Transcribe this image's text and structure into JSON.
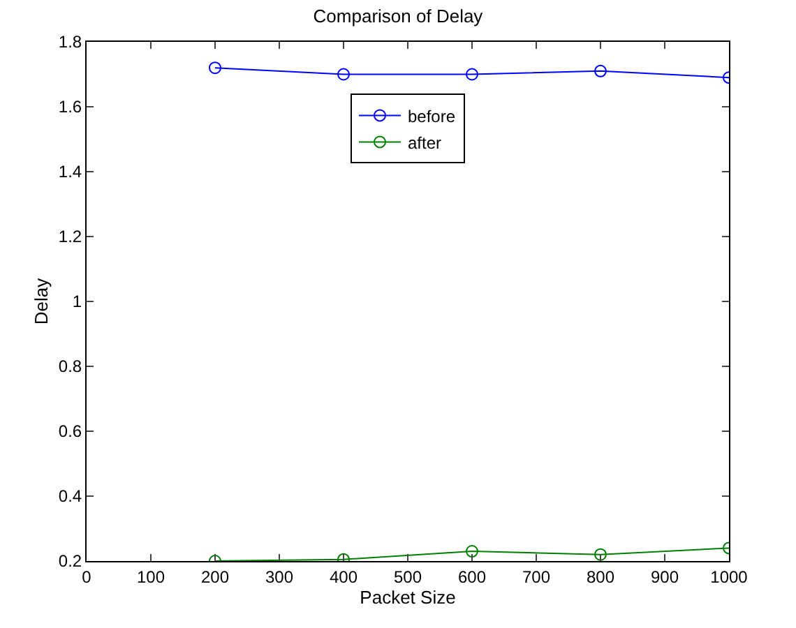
{
  "chart_data": {
    "type": "line",
    "title": "Comparison of Delay",
    "xlabel": "Packet Size",
    "ylabel": "Delay",
    "x": [
      200,
      400,
      600,
      800,
      1000
    ],
    "series": [
      {
        "name": "before",
        "color": "#0000ff",
        "values": [
          1.72,
          1.7,
          1.7,
          1.71,
          1.69
        ]
      },
      {
        "name": "after",
        "color": "#008000",
        "values": [
          0.2,
          0.205,
          0.23,
          0.22,
          0.24
        ]
      }
    ],
    "xlim": [
      0,
      1000
    ],
    "xticks": [
      0,
      100,
      200,
      300,
      400,
      500,
      600,
      700,
      800,
      900,
      1000
    ],
    "ylim": [
      0.2,
      1.8
    ],
    "yticks": [
      0.2,
      0.4,
      0.6,
      0.8,
      1,
      1.2,
      1.4,
      1.6,
      1.8
    ],
    "legend": "top",
    "marker": "circle",
    "line_style": "solid"
  }
}
